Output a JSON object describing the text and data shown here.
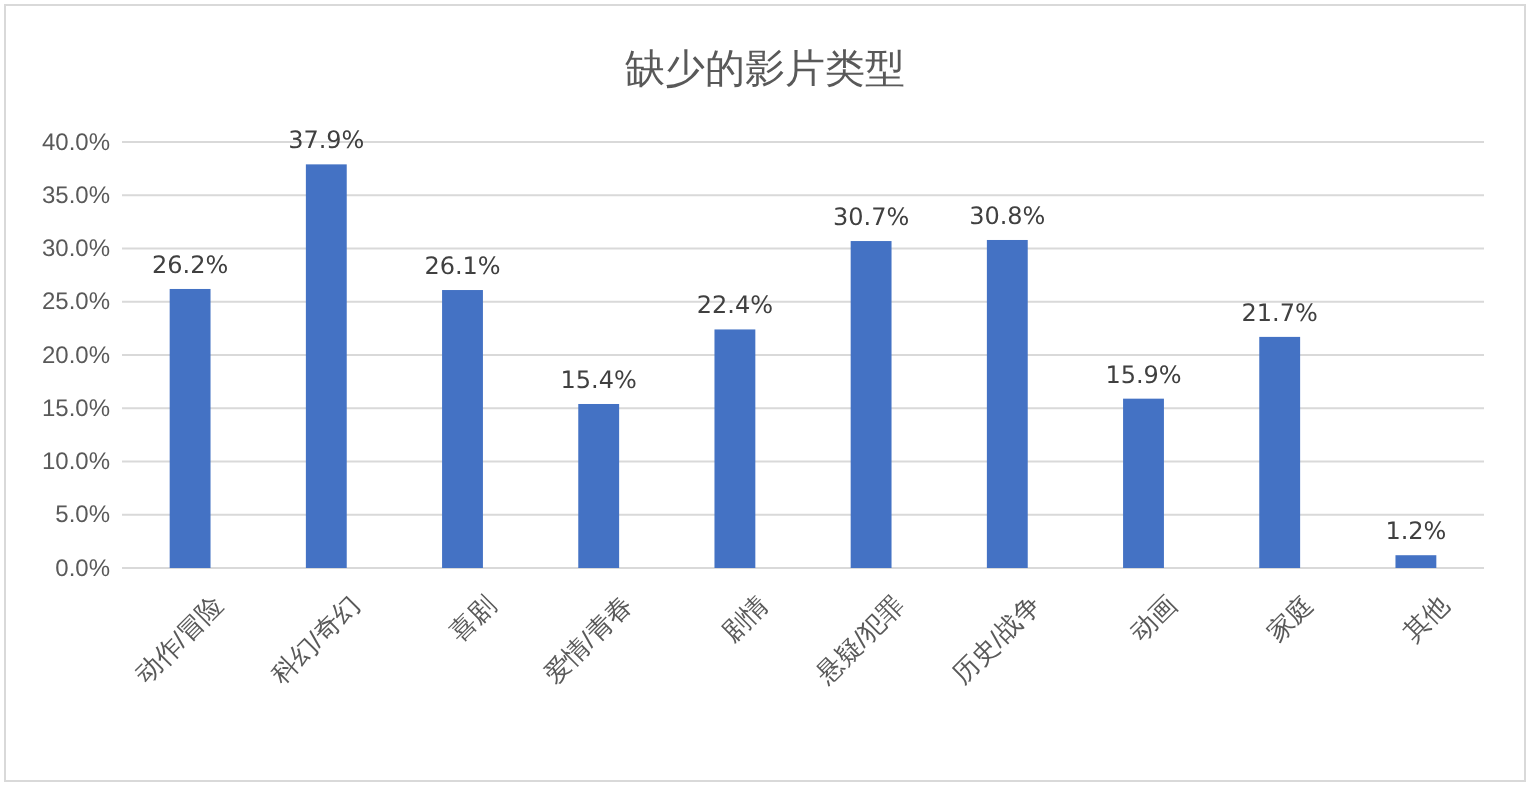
{
  "chart_data": {
    "type": "bar",
    "title": "缺少的影片类型",
    "categories": [
      "动作/冒险",
      "科幻/奇幻",
      "喜剧",
      "爱情/青春",
      "剧情",
      "悬疑/犯罪",
      "历史/战争",
      "动画",
      "家庭",
      "其他"
    ],
    "values": [
      26.2,
      37.9,
      26.1,
      15.4,
      22.4,
      30.7,
      30.8,
      15.9,
      21.7,
      1.2
    ],
    "value_labels": [
      "26.2%",
      "37.9%",
      "26.1%",
      "15.4%",
      "22.4%",
      "30.7%",
      "30.8%",
      "15.9%",
      "21.7%",
      "1.2%"
    ],
    "color": "#4472c4",
    "ylim": [
      0,
      40
    ],
    "yticks": [
      {
        "value": 0,
        "label": "0.0%"
      },
      {
        "value": 5,
        "label": "5.0%"
      },
      {
        "value": 10,
        "label": "10.0%"
      },
      {
        "value": 15,
        "label": "15.0%"
      },
      {
        "value": 20,
        "label": "20.0%"
      },
      {
        "value": 25,
        "label": "25.0%"
      },
      {
        "value": 30,
        "label": "30.0%"
      },
      {
        "value": 35,
        "label": "35.0%"
      },
      {
        "value": 40,
        "label": "40.0%"
      }
    ],
    "grid": "y"
  }
}
